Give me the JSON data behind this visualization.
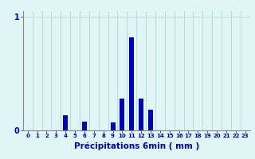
{
  "hours": [
    0,
    1,
    2,
    3,
    4,
    5,
    6,
    7,
    8,
    9,
    10,
    11,
    12,
    13,
    14,
    15,
    16,
    17,
    18,
    19,
    20,
    21,
    22,
    23
  ],
  "values": [
    0,
    0,
    0,
    0,
    0.13,
    0,
    0.08,
    0,
    0,
    0.07,
    0.28,
    0.82,
    0.28,
    0.18,
    0,
    0,
    0,
    0,
    0,
    0,
    0,
    0,
    0,
    0
  ],
  "bar_color": "#0000bb",
  "background_color": "#e0f5f5",
  "grid_color": "#b0dede",
  "axis_color": "#888888",
  "text_color": "#0000bb",
  "xlabel": "Précipitations 6min ( mm )",
  "ylim_max": 1.05,
  "ytick_labels": [
    "0",
    "1"
  ],
  "ytick_vals": [
    0,
    1
  ]
}
